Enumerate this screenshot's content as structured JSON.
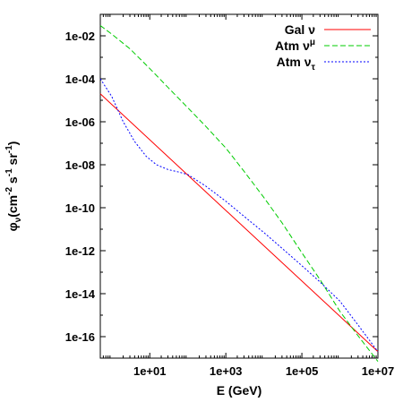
{
  "chart_data": {
    "type": "line",
    "xlabel": "E (GeV)",
    "ylabel": {
      "base": "φ",
      "base_sub": "ν",
      "units": "(cm",
      "exp1": "-2",
      "mid1": " s",
      "exp2": "-1",
      "mid2": " sr",
      "exp3": "-1",
      "close": ")"
    },
    "xscale": "log",
    "yscale": "log",
    "xlim": [
      0.5,
      10000000
    ],
    "ylim": [
      1e-17,
      0.1
    ],
    "xticks": [
      {
        "value": 10,
        "label": "1e+01"
      },
      {
        "value": 1000,
        "label": "1e+03"
      },
      {
        "value": 100000,
        "label": "1e+05"
      },
      {
        "value": 10000000,
        "label": "1e+07"
      }
    ],
    "yticks": [
      {
        "value": 0.01,
        "label": "1e-02"
      },
      {
        "value": 0.0001,
        "label": "1e-04"
      },
      {
        "value": 1e-06,
        "label": "1e-06"
      },
      {
        "value": 1e-08,
        "label": "1e-08"
      },
      {
        "value": 1e-10,
        "label": "1e-10"
      },
      {
        "value": 1e-12,
        "label": "1e-12"
      },
      {
        "value": 1e-14,
        "label": "1e-14"
      },
      {
        "value": 1e-16,
        "label": "1e-16"
      }
    ],
    "grid": false,
    "legend_position": "top-right",
    "series": [
      {
        "name": "Gal ν",
        "name_main": "Gal ν",
        "name_sub": "",
        "name_sup": "",
        "color": "#ff0000",
        "dash": "solid",
        "x": [
          0.5,
          10000000
        ],
        "y": [
          2e-05,
          2e-17
        ]
      },
      {
        "name": "Atm νμ",
        "name_main": "Atm ν",
        "name_sub": "",
        "name_sup": "μ",
        "color": "#00cc00",
        "dash": "dashed",
        "x": [
          0.5,
          1,
          3,
          10,
          30,
          100,
          300,
          1000,
          3000,
          10000,
          30000,
          100000,
          300000,
          1000000,
          3000000,
          10000000
        ],
        "y": [
          0.03,
          0.012,
          0.0025,
          0.0003,
          4e-05,
          4.5e-06,
          6e-07,
          6e-08,
          5e-09,
          3e-10,
          2e-11,
          8e-13,
          4.5e-14,
          1.5e-15,
          1.1e-16,
          7e-18
        ]
      },
      {
        "name": "Atm ντ",
        "name_main": "Atm ν",
        "name_sub": "τ",
        "name_sup": "",
        "color": "#0000ff",
        "dash": "dotted",
        "x": [
          0.5,
          1,
          2,
          4,
          8,
          15,
          30,
          60,
          100,
          300,
          1000,
          3000,
          10000,
          30000,
          100000,
          300000,
          1000000,
          3000000,
          10000000
        ],
        "y": [
          0.0001,
          1.5e-05,
          1e-06,
          1.2e-07,
          2.5e-08,
          1e-08,
          6e-09,
          4.5e-09,
          3.5e-09,
          1e-09,
          2e-10,
          4e-11,
          7e-12,
          1.3e-12,
          2e-13,
          3.5e-14,
          4.5e-15,
          3.5e-16,
          2e-17
        ]
      }
    ]
  }
}
